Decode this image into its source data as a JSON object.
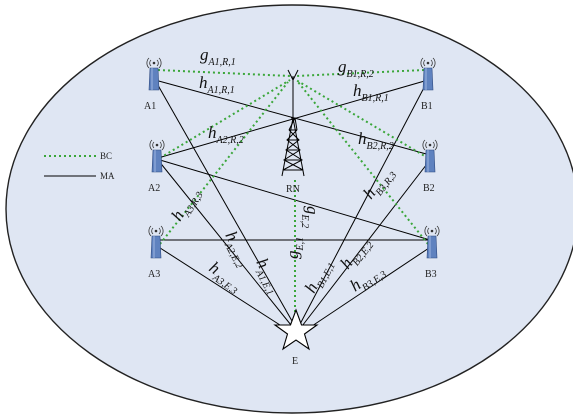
{
  "legend": {
    "bc_label": "BC",
    "ma_label": "MA"
  },
  "nodes": {
    "A1": "A1",
    "A2": "A2",
    "A3": "A3",
    "B1": "B1",
    "B2": "B2",
    "B3": "B3",
    "RN": "RN",
    "E": "E"
  },
  "channels": {
    "gA1": {
      "main": "g",
      "sub": "A1,R,1"
    },
    "gB1": {
      "main": "g",
      "sub": "B1,R,2"
    },
    "hA1R": {
      "main": "h",
      "sub": "A1,R,1"
    },
    "hB1R": {
      "main": "h",
      "sub": "B1,R,1"
    },
    "hA2R": {
      "main": "h",
      "sub": "A2,R,2"
    },
    "hB2R": {
      "main": "h",
      "sub": "B2,R,2"
    },
    "hA3R": {
      "main": "h",
      "sub": "A3,R,3"
    },
    "hB3R": {
      "main": "h",
      "sub": "B3,R,3"
    },
    "gE1": {
      "main": "g",
      "sub": "E,1"
    },
    "gE2": {
      "main": "g",
      "sub": "E,2"
    },
    "hA2E": {
      "main": "h",
      "sub": "A2,E,2"
    },
    "hA1E": {
      "main": "h",
      "sub": "A1,E,1"
    },
    "hB1E": {
      "main": "h",
      "sub": "B1,E,1"
    },
    "hB2E": {
      "main": "h",
      "sub": "B2,E,2"
    },
    "hA3E": {
      "main": "h",
      "sub": "A3,E,3"
    },
    "hB3E": {
      "main": "h",
      "sub": "B3,E,3"
    }
  },
  "colors": {
    "bc_line": "#3aa63a",
    "ma_line": "#000000",
    "ellipse_fill": "#dfe6f3",
    "ellipse_stroke": "#222222"
  }
}
